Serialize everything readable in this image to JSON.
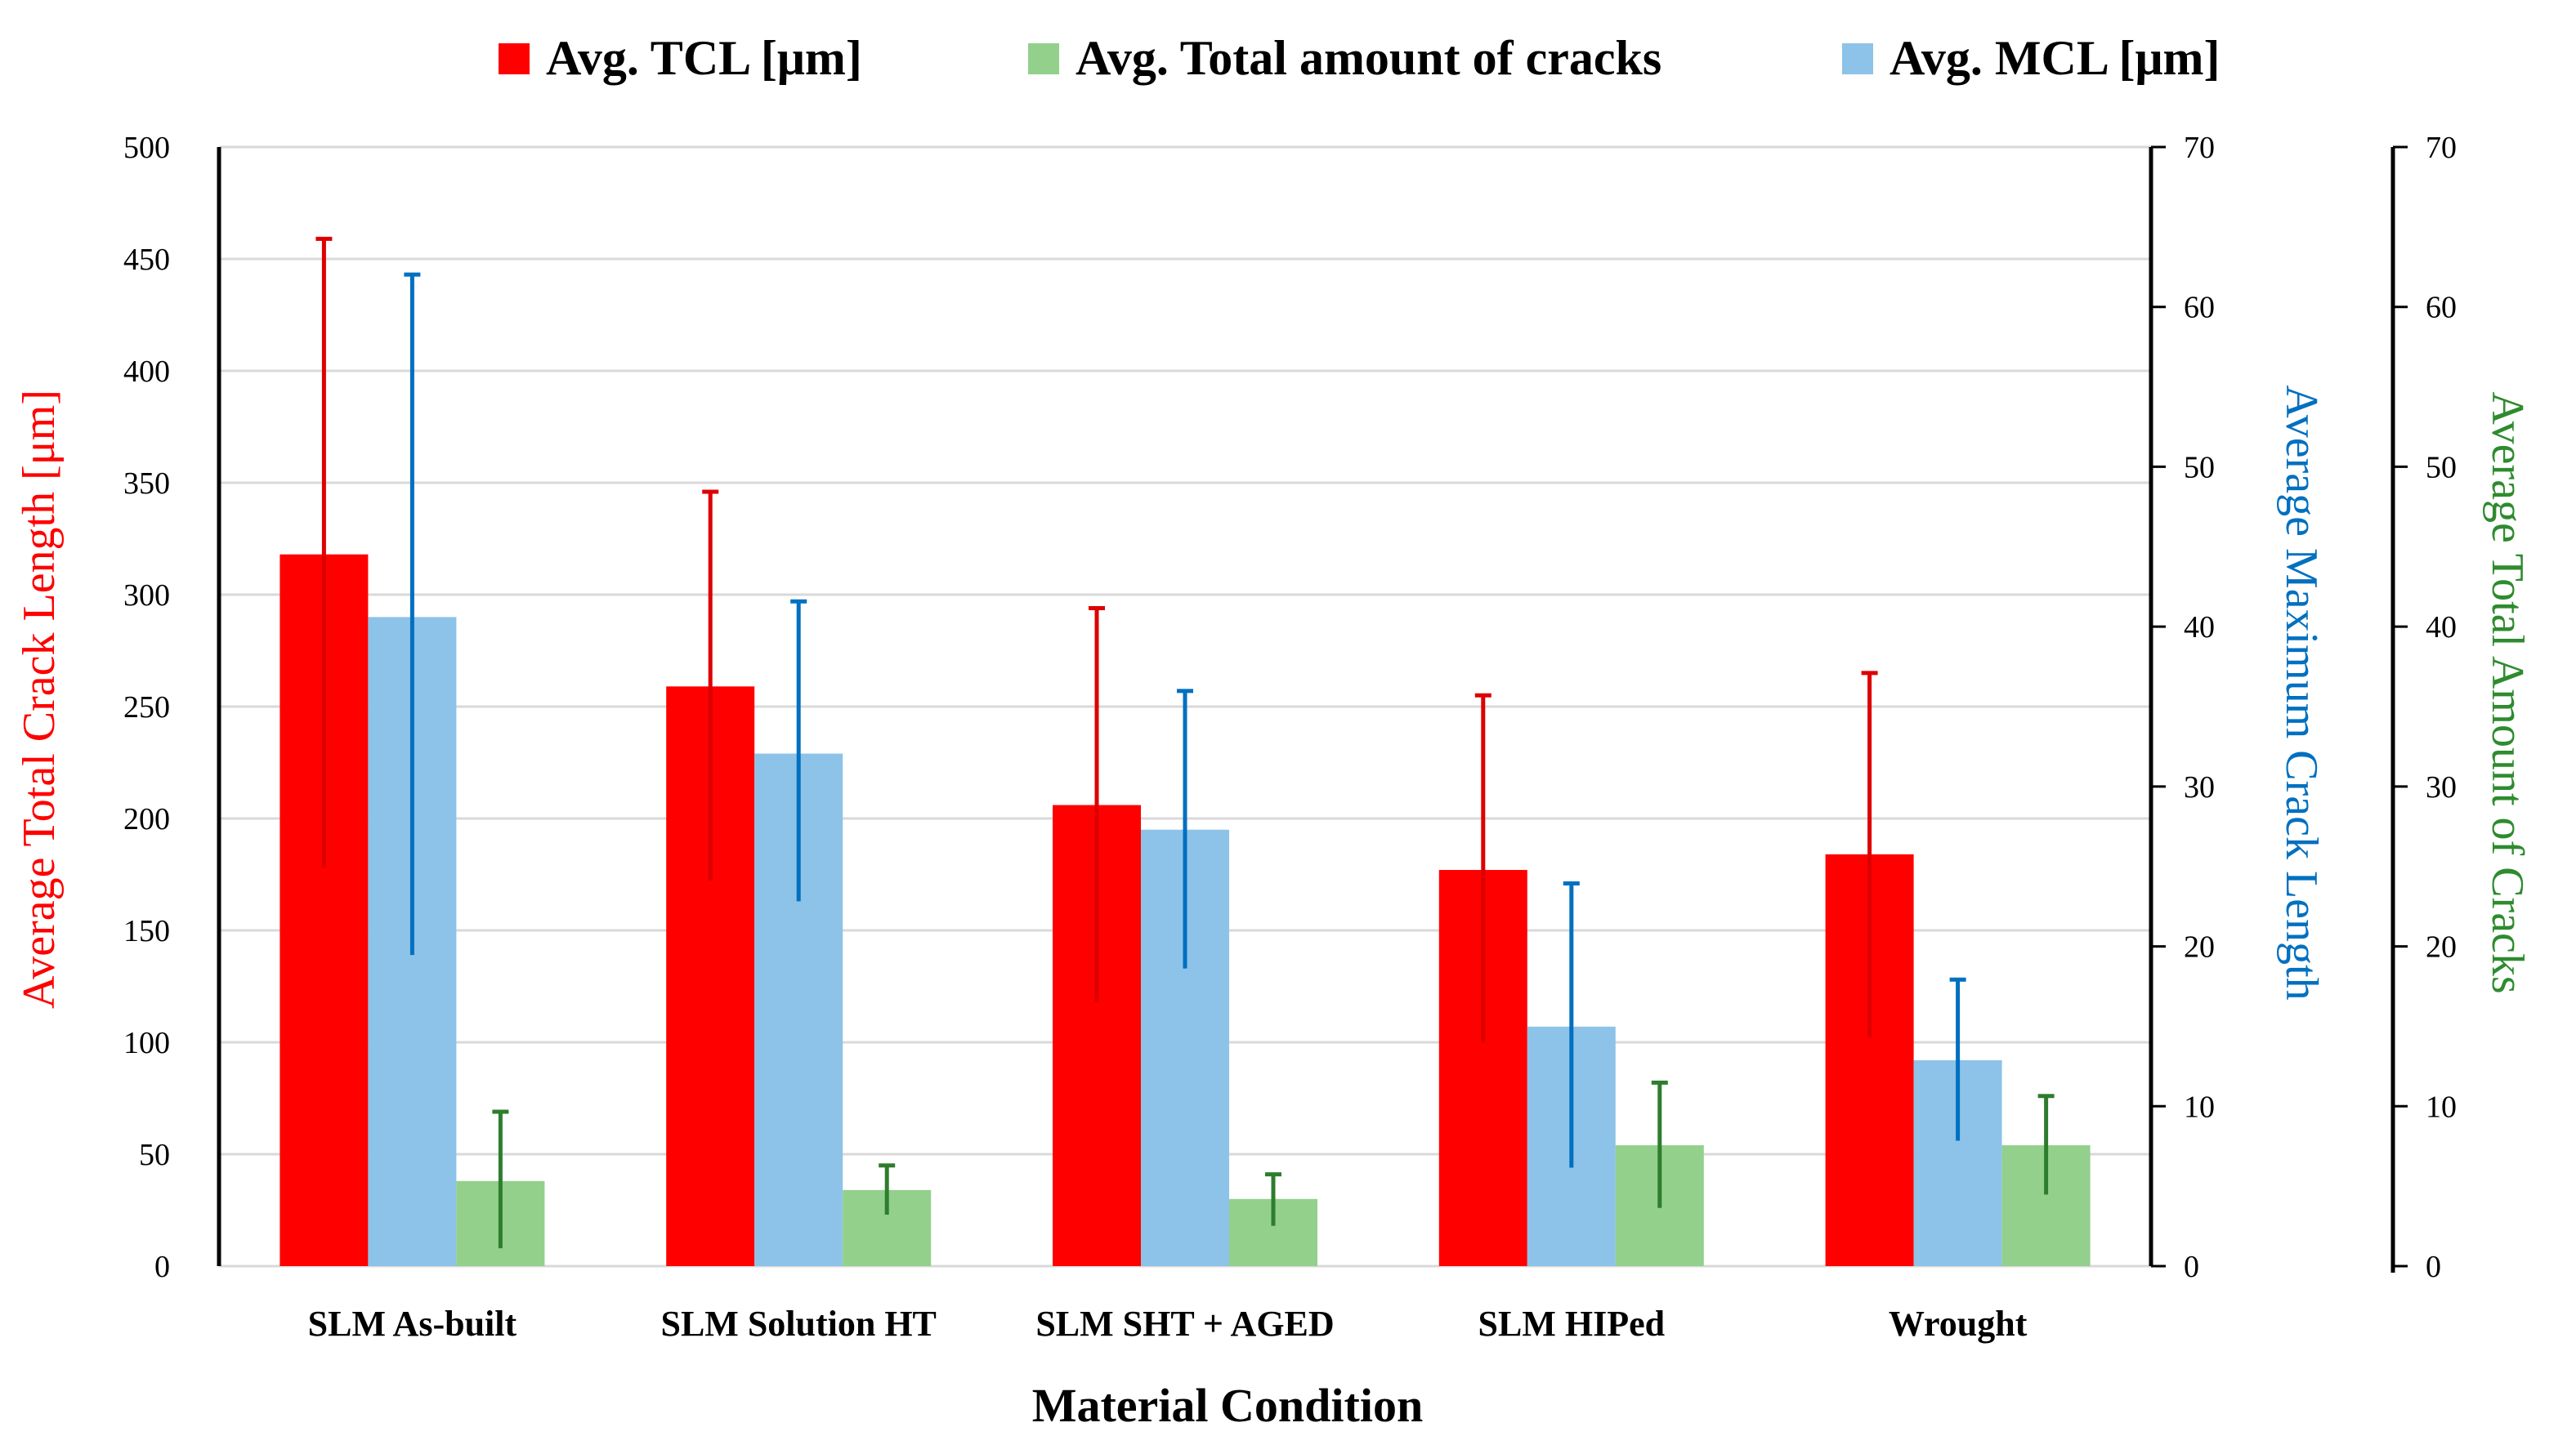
{
  "chart_data": {
    "type": "bar",
    "title": "",
    "xlabel": "Material Condition",
    "categories": [
      "SLM As-built",
      "SLM Solution HT",
      "SLM SHT + AGED",
      "SLM HIPed",
      "Wrought"
    ],
    "axes": {
      "left": {
        "label": "Average Total Crack Length [μm]",
        "ylim": [
          0,
          500
        ],
        "step": 50,
        "color": "#ff0000"
      },
      "right1": {
        "label": "Average Maximum Crack Length",
        "ylim": [
          0,
          70
        ],
        "step": 10,
        "color": "#0070c0"
      },
      "right2": {
        "label": "Average Total Amount of Cracks",
        "ylim": [
          0,
          70
        ],
        "step": 10,
        "color": "#2e8b2e"
      }
    },
    "series": [
      {
        "name": "Avg.  TCL [μm]",
        "axis": "left",
        "color": "#ff0000",
        "errColor": "#dd0000",
        "values": [
          318,
          259,
          206,
          177,
          184
        ],
        "err_low": [
          178,
          172,
          118,
          100,
          102
        ],
        "err_high": [
          459,
          346,
          294,
          255,
          265
        ]
      },
      {
        "name": "Avg. MCL  [μm]",
        "axis": "left",
        "color": "#8dc3e8",
        "errColor": "#0070c0",
        "values": [
          290,
          229,
          195,
          107,
          92
        ],
        "err_low": [
          139,
          163,
          133,
          44,
          56
        ],
        "err_high": [
          443,
          297,
          257,
          171,
          128
        ]
      },
      {
        "name": "Avg. Total amount of cracks",
        "axis": "left",
        "color": "#92d08c",
        "errColor": "#2e7d2e",
        "values": [
          38,
          34,
          30,
          54,
          54
        ],
        "err_low": [
          8,
          23,
          18,
          26,
          32
        ],
        "err_high": [
          69,
          45,
          41,
          82,
          76
        ]
      }
    ],
    "legend": {
      "placement": "top",
      "order": [
        "Avg.  TCL [μm]",
        "Avg. Total amount of cracks",
        "Avg. MCL  [μm]"
      ]
    }
  }
}
